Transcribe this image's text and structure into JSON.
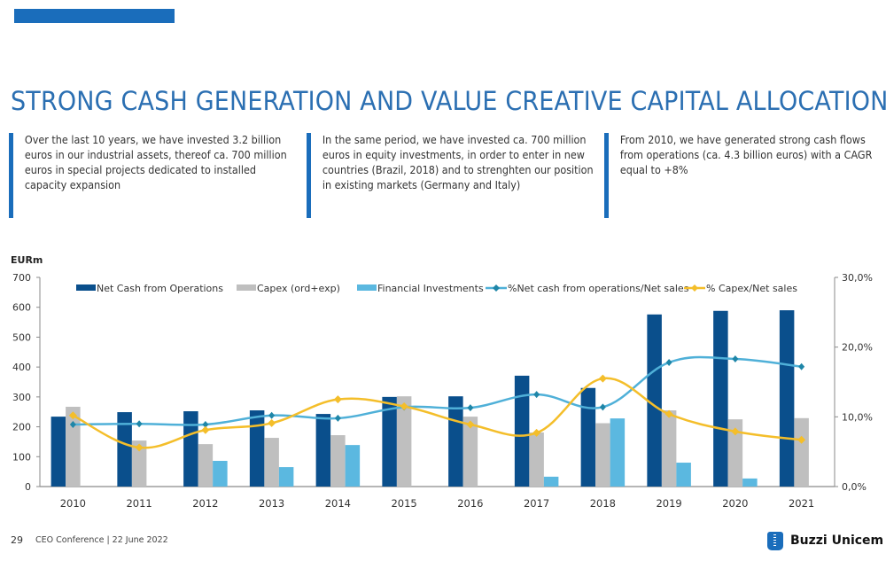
{
  "slide": {
    "title": "STRONG CASH GENERATION AND VALUE CREATIVE CAPITAL ALLOCATION",
    "text_boxes": [
      "Over the last 10 years, we have invested 3.2 billion euros in our industrial assets, thereof ca. 700 million euros in special projects dedicated to installed capacity expansion",
      "In the same period, we have invested ca. 700 million euros in equity investments, in order to enter in new countries (Brazil, 2018) and to strenghten our position in existing markets (Germany and Italy)",
      "From 2010, we have generated strong cash flows from operations (ca. 4.3 billion euros) with a CAGR equal to +8%"
    ],
    "accent_color": "#1a6dbb",
    "title_color": "#2b6fb2"
  },
  "footer": {
    "page_number": "29",
    "event": "CEO Conference | 22 June 2022",
    "logo_text": "Buzzi Unicem",
    "logo_icon": "buzzi-unicem-logo-icon"
  },
  "chart_data": {
    "type": "bar",
    "title": "",
    "ylabel": "EURm",
    "xlabel": "",
    "categories": [
      "2010",
      "2011",
      "2012",
      "2013",
      "2014",
      "2015",
      "2016",
      "2017",
      "2018",
      "2019",
      "2020",
      "2021"
    ],
    "ylim": [
      0,
      700
    ],
    "y_ticks": [
      "0",
      "100",
      "200",
      "300",
      "400",
      "500",
      "600",
      "700"
    ],
    "y2lim": [
      0,
      30
    ],
    "y2_ticks": [
      "0,0%",
      "10,0%",
      "20,0%",
      "30,0%"
    ],
    "grid": false,
    "legend_position": "top",
    "series": [
      {
        "name": "Net Cash from Operations",
        "kind": "bar",
        "axis": "left",
        "color": "#0a4f8c",
        "values": [
          234,
          249,
          252,
          255,
          243,
          300,
          302,
          371,
          330,
          576,
          588,
          590
        ]
      },
      {
        "name": "Capex (ord+exp)",
        "kind": "bar",
        "axis": "left",
        "color": "#bfbfbf",
        "values": [
          267,
          154,
          142,
          163,
          172,
          302,
          234,
          181,
          212,
          255,
          225,
          229
        ]
      },
      {
        "name": "Financial Investments",
        "kind": "bar",
        "axis": "left",
        "color": "#5bb8e0",
        "values": [
          0,
          0,
          86,
          65,
          139,
          0,
          0,
          33,
          228,
          80,
          27,
          0
        ]
      },
      {
        "name": "%Net cash from operations/Net sales",
        "kind": "line",
        "axis": "right",
        "color": "#4fb0d8",
        "marker_color": "#1f86a8",
        "values": [
          8.9,
          9.0,
          8.9,
          10.2,
          9.8,
          11.4,
          11.3,
          13.2,
          11.4,
          17.8,
          18.3,
          17.2
        ]
      },
      {
        "name": "% Capex/Net sales",
        "kind": "line",
        "axis": "right",
        "color": "#f4be2a",
        "marker_color": "#f4be2a",
        "values": [
          10.2,
          5.6,
          8.1,
          9.1,
          12.5,
          11.5,
          8.9,
          7.7,
          15.5,
          10.4,
          7.9,
          6.7
        ]
      }
    ]
  }
}
